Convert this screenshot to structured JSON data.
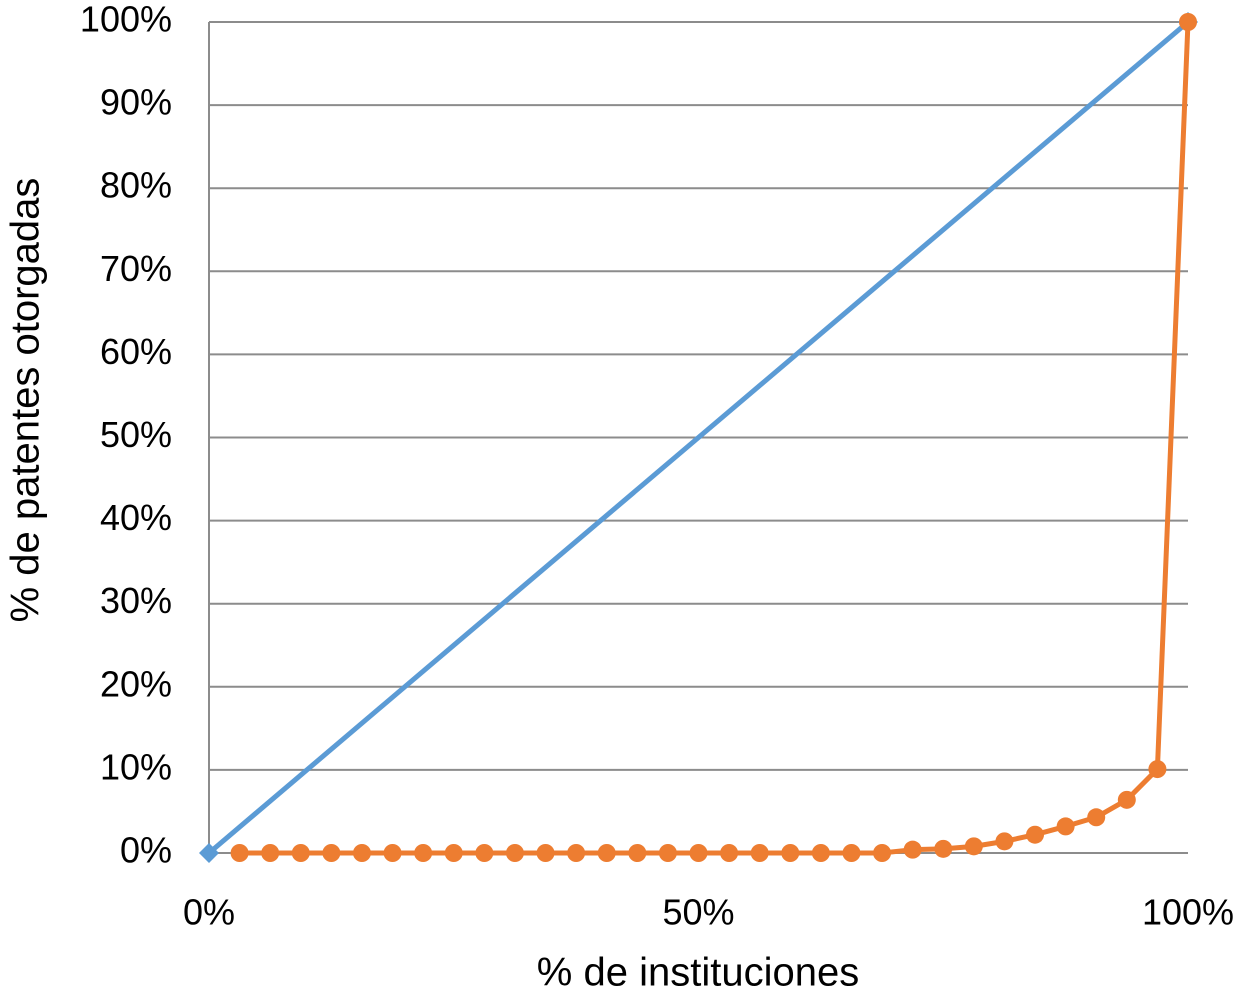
{
  "chart_data": {
    "type": "line",
    "xlabel": "% de instituciones",
    "ylabel": "% de patentes otorgadas",
    "xlim": [
      0,
      100
    ],
    "ylim": [
      0,
      100
    ],
    "xticks": [
      {
        "value": 0,
        "label": "0%"
      },
      {
        "value": 50,
        "label": "50%"
      },
      {
        "value": 100,
        "label": "100%"
      }
    ],
    "yticks": [
      {
        "value": 0,
        "label": "0%"
      },
      {
        "value": 10,
        "label": "10%"
      },
      {
        "value": 20,
        "label": "20%"
      },
      {
        "value": 30,
        "label": "30%"
      },
      {
        "value": 40,
        "label": "40%"
      },
      {
        "value": 50,
        "label": "50%"
      },
      {
        "value": 60,
        "label": "60%"
      },
      {
        "value": 70,
        "label": "70%"
      },
      {
        "value": 80,
        "label": "80%"
      },
      {
        "value": 90,
        "label": "90%"
      },
      {
        "value": 100,
        "label": "100%"
      }
    ],
    "grid": true,
    "series": [
      {
        "color": "#5b9bd5",
        "marker": "diamond",
        "x": [
          0,
          100
        ],
        "values": [
          0,
          100
        ]
      },
      {
        "color": "#ed7d31",
        "marker": "circle",
        "x": [
          3.125,
          6.25,
          9.375,
          12.5,
          15.625,
          18.75,
          21.875,
          25,
          28.125,
          31.25,
          34.375,
          37.5,
          40.625,
          43.75,
          46.875,
          50,
          53.125,
          56.25,
          59.375,
          62.5,
          65.625,
          68.75,
          71.875,
          75,
          78.125,
          81.25,
          84.375,
          87.5,
          90.625,
          93.75,
          96.875,
          100
        ],
        "values": [
          0,
          0,
          0,
          0,
          0,
          0,
          0,
          0,
          0,
          0,
          0,
          0,
          0,
          0,
          0,
          0,
          0,
          0,
          0,
          0,
          0,
          0,
          0.4,
          0.5,
          0.8,
          1.4,
          2.2,
          3.2,
          4.3,
          6.4,
          10.1,
          100
        ]
      }
    ]
  }
}
